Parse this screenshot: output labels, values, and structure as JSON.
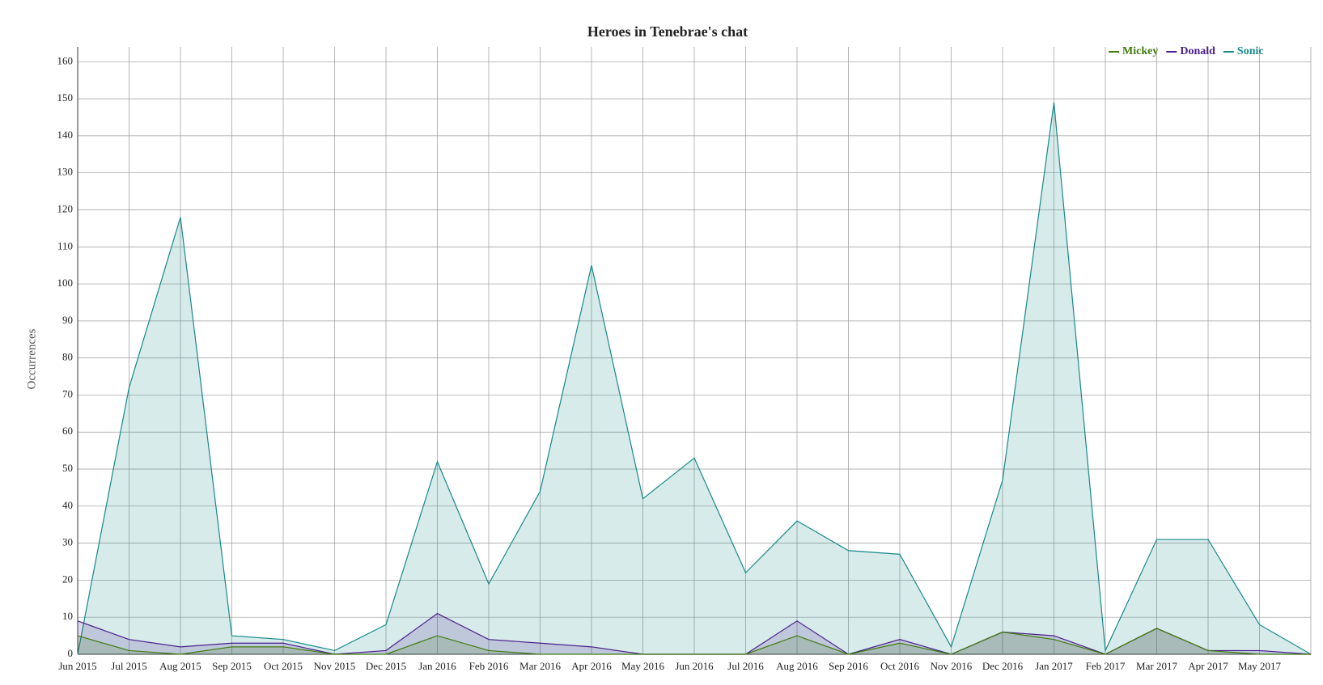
{
  "chart_data": {
    "type": "area",
    "title": "Heroes in Tenebrae's chat",
    "y_label": "Occurrences",
    "categories": [
      "Jun 2015",
      "Jul 2015",
      "Aug 2015",
      "Sep 2015",
      "Oct 2015",
      "Nov 2015",
      "Dec 2015",
      "Jan 2016",
      "Feb 2016",
      "Mar 2016",
      "Apr 2016",
      "May 2016",
      "Jun 2016",
      "Jul 2016",
      "Aug 2016",
      "Sep 2016",
      "Oct 2016",
      "Nov 2016",
      "Dec 2016",
      "Jan 2017",
      "Feb 2017",
      "Mar 2017",
      "Apr 2017",
      "May 2017",
      null
    ],
    "series": [
      {
        "name": "Mickey",
        "color": "#3f7a0c",
        "values": [
          5,
          1,
          0,
          2,
          2,
          0,
          0,
          5,
          1,
          0,
          0,
          0,
          0,
          0,
          5,
          0,
          3,
          0,
          6,
          4,
          0,
          7,
          1,
          0,
          0
        ]
      },
      {
        "name": "Donald",
        "color": "#4a1f8c",
        "values": [
          9,
          4,
          2,
          3,
          3,
          0,
          1,
          11,
          4,
          3,
          2,
          0,
          0,
          0,
          9,
          0,
          4,
          0,
          6,
          5,
          0,
          7,
          1,
          1,
          0
        ]
      },
      {
        "name": "Sonic",
        "color": "#16888a",
        "values": [
          0,
          72,
          118,
          5,
          4,
          1,
          8,
          52,
          19,
          44,
          105,
          42,
          53,
          22,
          36,
          28,
          27,
          2,
          47,
          149,
          1,
          31,
          31,
          8,
          0
        ]
      }
    ],
    "ylim": [
      0,
      164
    ],
    "yticks": [
      0,
      10,
      20,
      30,
      40,
      50,
      60,
      70,
      80,
      90,
      100,
      110,
      120,
      130,
      140,
      150,
      160
    ],
    "grid": true,
    "legend": "top-right"
  }
}
